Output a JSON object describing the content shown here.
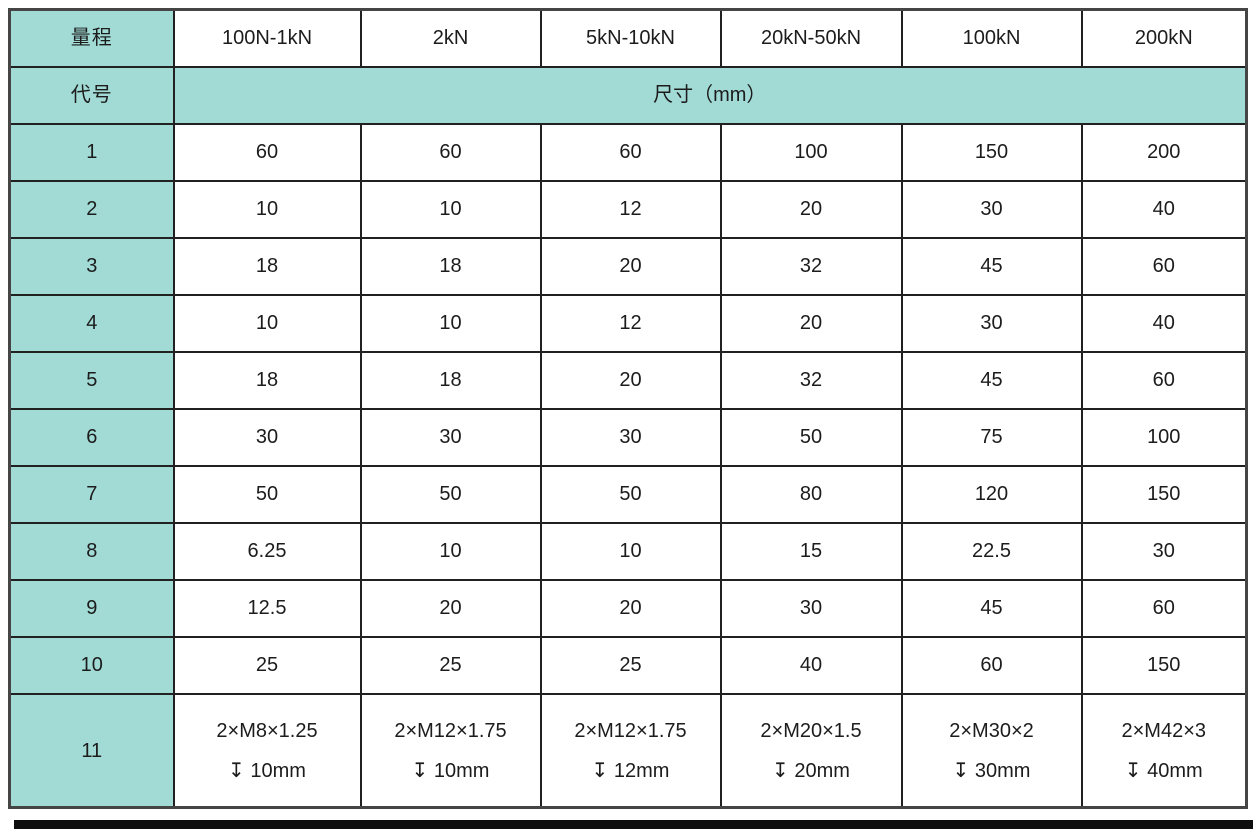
{
  "table": {
    "corner": {
      "range_label": "量程",
      "code_label": "代号"
    },
    "columns": [
      "100N-1kN",
      "2kN",
      "5kN-10kN",
      "20kN-50kN",
      "100kN",
      "200kN"
    ],
    "size_header": "尺寸（mm）",
    "rows": [
      {
        "code": "1",
        "values": [
          "60",
          "60",
          "60",
          "100",
          "150",
          "200"
        ]
      },
      {
        "code": "2",
        "values": [
          "10",
          "10",
          "12",
          "20",
          "30",
          "40"
        ]
      },
      {
        "code": "3",
        "values": [
          "18",
          "18",
          "20",
          "32",
          "45",
          "60"
        ]
      },
      {
        "code": "4",
        "values": [
          "10",
          "10",
          "12",
          "20",
          "30",
          "40"
        ]
      },
      {
        "code": "5",
        "values": [
          "18",
          "18",
          "20",
          "32",
          "45",
          "60"
        ]
      },
      {
        "code": "6",
        "values": [
          "30",
          "30",
          "30",
          "50",
          "75",
          "100"
        ]
      },
      {
        "code": "7",
        "values": [
          "50",
          "50",
          "50",
          "80",
          "120",
          "150"
        ]
      },
      {
        "code": "8",
        "values": [
          "6.25",
          "10",
          "10",
          "15",
          "22.5",
          "30"
        ]
      },
      {
        "code": "9",
        "values": [
          "12.5",
          "20",
          "20",
          "30",
          "45",
          "60"
        ]
      },
      {
        "code": "10",
        "values": [
          "25",
          "25",
          "25",
          "40",
          "60",
          "150"
        ]
      },
      {
        "code": "11",
        "values": [
          "2×M8×1.25\n↧ 10mm",
          "2×M12×1.75\n↧ 10mm",
          "2×M12×1.75\n↧ 12mm",
          "2×M20×1.5\n↧ 20mm",
          "2×M30×2\n↧ 30mm",
          "2×M42×3\n↧ 40mm"
        ]
      }
    ]
  },
  "colors": {
    "header_fill": "#a2dbd6",
    "border": "#212121",
    "bottom_rule": "#0e0e0e"
  }
}
